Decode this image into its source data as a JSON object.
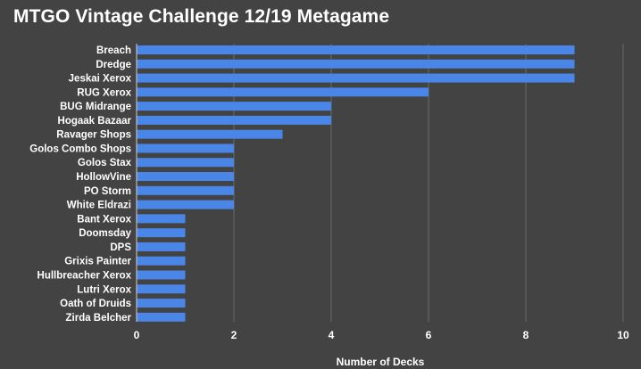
{
  "chart_data": {
    "type": "bar",
    "orientation": "horizontal",
    "title": "MTGO Vintage Challenge 12/19 Metagame",
    "xlabel": "Number of Decks",
    "ylabel": "",
    "xlim": [
      0,
      10
    ],
    "xticks": [
      "0",
      "2",
      "4",
      "6",
      "8",
      "10"
    ],
    "grid": true,
    "legend": "none",
    "categories": [
      "Breach",
      "Dredge",
      "Jeskai Xerox",
      "RUG Xerox",
      "BUG Midrange",
      "Hogaak Bazaar",
      "Ravager Shops",
      "Golos Combo Shops",
      "Golos Stax",
      "HollowVine",
      "PO Storm",
      "White Eldrazi",
      "Bant Xerox",
      "Doomsday",
      "DPS",
      "Grixis Painter",
      "Hullbreacher Xerox",
      "Lutri Xerox",
      "Oath of Druids",
      "Zirda Belcher"
    ],
    "values": [
      9,
      9,
      9,
      6,
      4,
      4,
      3,
      2,
      2,
      2,
      2,
      2,
      1,
      1,
      1,
      1,
      1,
      1,
      1,
      1
    ],
    "colors": {
      "bar": "#4a86e8",
      "background": "#434343",
      "gridline": "#6a6a6a",
      "axis": "#cfcfcf",
      "text": "#ffffff"
    }
  }
}
